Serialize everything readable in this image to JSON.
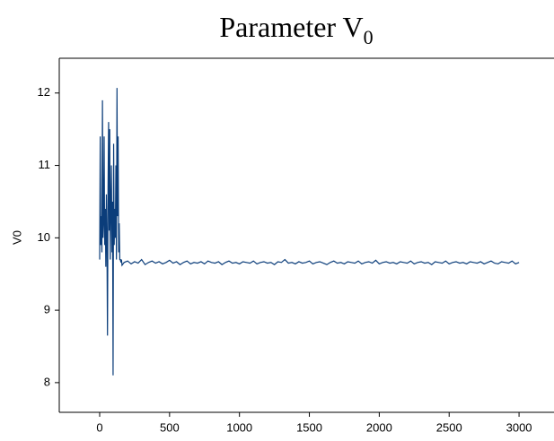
{
  "chart_data": {
    "type": "line",
    "title": "Parameter V",
    "title_subscript": "0",
    "y_label": "V0",
    "color": "#0b3d7a",
    "xlim": [
      -289,
      3250
    ],
    "ylim": [
      7.59,
      12.48
    ],
    "xticks": [
      0,
      500,
      1000,
      1500,
      2000,
      2500,
      3000
    ],
    "yticks": [
      8,
      9,
      10,
      11,
      12
    ],
    "x": [
      0,
      4,
      8,
      12,
      16,
      20,
      24,
      28,
      32,
      36,
      40,
      44,
      48,
      52,
      56,
      60,
      64,
      68,
      72,
      76,
      80,
      84,
      88,
      92,
      96,
      100,
      104,
      108,
      112,
      116,
      120,
      124,
      128,
      132,
      136,
      140,
      144,
      148,
      152,
      156,
      160,
      175,
      200,
      225,
      250,
      275,
      300,
      325,
      350,
      375,
      400,
      425,
      450,
      475,
      500,
      525,
      550,
      575,
      600,
      625,
      650,
      675,
      700,
      725,
      750,
      775,
      800,
      825,
      850,
      875,
      900,
      925,
      950,
      975,
      1000,
      1025,
      1050,
      1075,
      1100,
      1125,
      1150,
      1175,
      1200,
      1225,
      1250,
      1275,
      1300,
      1325,
      1350,
      1375,
      1400,
      1425,
      1450,
      1475,
      1500,
      1525,
      1550,
      1575,
      1600,
      1625,
      1650,
      1675,
      1700,
      1725,
      1750,
      1775,
      1800,
      1825,
      1850,
      1875,
      1900,
      1925,
      1950,
      1975,
      2000,
      2025,
      2050,
      2075,
      2100,
      2125,
      2150,
      2175,
      2200,
      2225,
      2250,
      2275,
      2300,
      2325,
      2350,
      2375,
      2400,
      2425,
      2450,
      2475,
      2500,
      2525,
      2550,
      2575,
      2600,
      2625,
      2650,
      2675,
      2700,
      2725,
      2750,
      2775,
      2800,
      2825,
      2850,
      2875,
      2900,
      2925,
      2950,
      2975,
      3000
    ],
    "values": [
      9.7,
      11.4,
      9.9,
      10.3,
      9.8,
      11.9,
      10.0,
      10.2,
      11.4,
      9.9,
      10.4,
      9.6,
      10.6,
      10.0,
      8.65,
      10.7,
      11.6,
      10.1,
      11.5,
      9.7,
      10.4,
      11.0,
      9.8,
      10.5,
      8.1,
      11.3,
      9.9,
      10.4,
      10.0,
      11.0,
      9.7,
      12.07,
      10.3,
      11.4,
      9.8,
      10.2,
      9.7,
      9.7,
      9.66,
      9.7,
      9.62,
      9.66,
      9.68,
      9.64,
      9.67,
      9.65,
      9.7,
      9.63,
      9.66,
      9.68,
      9.65,
      9.67,
      9.64,
      9.66,
      9.69,
      9.65,
      9.67,
      9.63,
      9.66,
      9.68,
      9.64,
      9.66,
      9.65,
      9.67,
      9.64,
      9.68,
      9.66,
      9.65,
      9.67,
      9.63,
      9.66,
      9.68,
      9.65,
      9.66,
      9.64,
      9.67,
      9.66,
      9.65,
      9.68,
      9.64,
      9.66,
      9.67,
      9.65,
      9.66,
      9.63,
      9.67,
      9.66,
      9.7,
      9.65,
      9.66,
      9.64,
      9.67,
      9.65,
      9.66,
      9.68,
      9.64,
      9.66,
      9.67,
      9.65,
      9.63,
      9.66,
      9.68,
      9.65,
      9.66,
      9.64,
      9.67,
      9.66,
      9.65,
      9.68,
      9.64,
      9.66,
      9.67,
      9.65,
      9.69,
      9.64,
      9.66,
      9.67,
      9.65,
      9.66,
      9.64,
      9.67,
      9.66,
      9.65,
      9.68,
      9.64,
      9.66,
      9.67,
      9.65,
      9.66,
      9.63,
      9.67,
      9.66,
      9.65,
      9.68,
      9.64,
      9.66,
      9.67,
      9.65,
      9.66,
      9.64,
      9.67,
      9.66,
      9.65,
      9.67,
      9.64,
      9.66,
      9.68,
      9.65,
      9.64,
      9.67,
      9.66,
      9.65,
      9.68,
      9.64,
      9.66
    ]
  }
}
